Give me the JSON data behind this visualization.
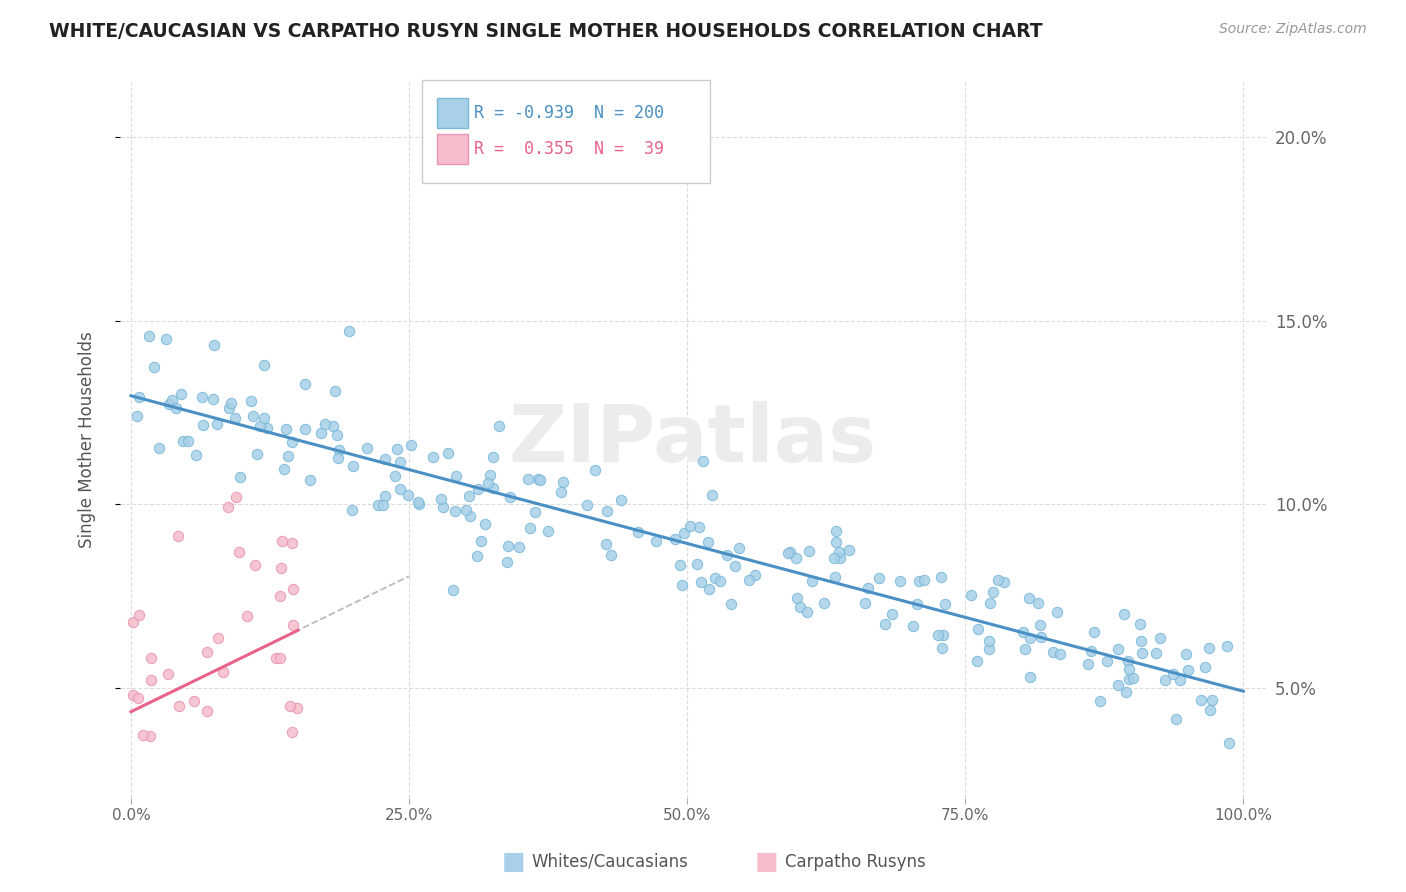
{
  "title": "WHITE/CAUCASIAN VS CARPATHO RUSYN SINGLE MOTHER HOUSEHOLDS CORRELATION CHART",
  "source": "Source: ZipAtlas.com",
  "ylabel": "Single Mother Households",
  "legend_blue_r": "-0.939",
  "legend_blue_n": "200",
  "legend_pink_r": "0.355",
  "legend_pink_n": "39",
  "blue_color": "#A8D0E8",
  "pink_color": "#F5BCCC",
  "blue_line_color": "#4A90C4",
  "pink_line_color": "#E8638A",
  "dash_color": "#BBBBBB",
  "watermark": "ZIPatlas",
  "background_color": "#FFFFFF",
  "seed": 42,
  "blue_edge": "#7AB8D8",
  "pink_edge": "#E895B0"
}
